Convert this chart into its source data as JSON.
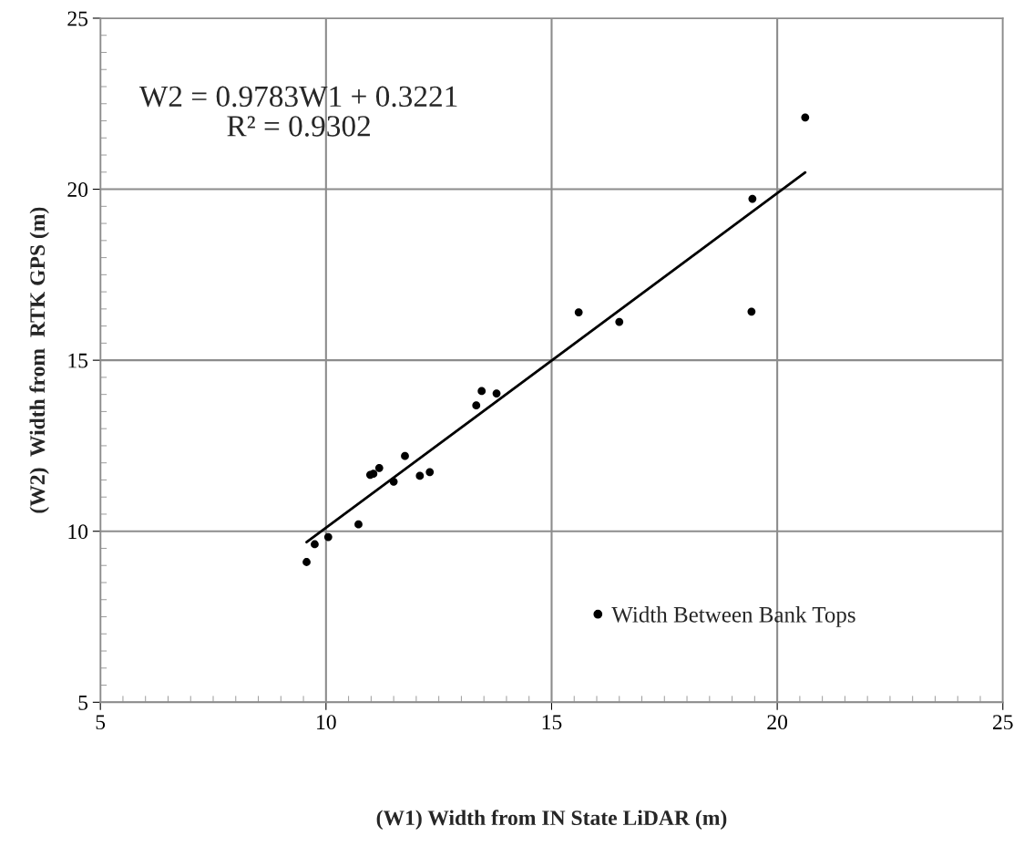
{
  "chart_data": {
    "type": "scatter",
    "xlabel": "(W1) Width from IN State LiDAR (m)",
    "ylabel": "(W2)  Width from  RTK GPS (m)",
    "annotations": [
      "W2 = 0.9783W1 + 0.3221\nR² = 0.9302"
    ],
    "series": [
      {
        "name": "Width Between Bank Tops",
        "color": "#000000",
        "marker": "circle",
        "x": [
          9.57,
          9.75,
          10.05,
          10.72,
          10.98,
          11.05,
          11.18,
          11.5,
          11.75,
          12.08,
          12.3,
          13.33,
          13.45,
          13.78,
          15.6,
          16.5,
          19.43,
          19.45,
          20.62
        ],
        "values": [
          9.1,
          9.62,
          9.83,
          10.2,
          11.65,
          11.68,
          11.85,
          11.45,
          12.2,
          11.62,
          11.73,
          13.68,
          14.1,
          14.03,
          16.4,
          16.12,
          16.42,
          19.72,
          22.1
        ]
      },
      {
        "type": "line",
        "color": "#000000",
        "x": [
          9.57,
          20.62
        ],
        "values": [
          9.68,
          20.49
        ]
      }
    ],
    "xlim": [
      5,
      25
    ],
    "xticks": [
      5,
      10,
      15,
      20,
      25
    ],
    "ylim": [
      5,
      25
    ],
    "yticks": [
      5,
      10,
      15,
      20,
      25
    ],
    "grid": true,
    "legend": "bottom right"
  }
}
